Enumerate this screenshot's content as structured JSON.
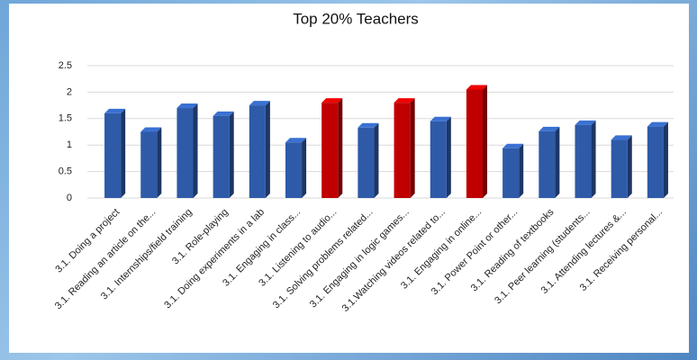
{
  "chart_data": {
    "type": "bar3d",
    "title": "Top 20% Teachers",
    "categories": [
      "3.1.  Doing a project",
      "3.1.  Reading an article on the...",
      "3.1.  Internships/field training",
      "3.1.  Role-playing",
      "3.1.   Doing experiments in a lab",
      "3.1.   Engaging in class...",
      "3.1.  Listening to audio...",
      "3.1.  Solving problems related...",
      "3.1.  Engaging in logic games...",
      "3.1.Watching videos related to...",
      "3.1. Engaging in online...",
      "3.1.  Power Point or other...",
      "3.1.  Reading of textbooks",
      "3.1.  Peer learning (students...",
      "3.1. Attending lectures &...",
      "3.1. Receiving personal..."
    ],
    "values": [
      1.6,
      1.25,
      1.7,
      1.55,
      1.75,
      1.05,
      1.8,
      1.33,
      1.8,
      1.45,
      2.05,
      0.94,
      1.26,
      1.38,
      1.1,
      1.35
    ],
    "colors": [
      "#2e5aa8",
      "#2e5aa8",
      "#2e5aa8",
      "#2e5aa8",
      "#2e5aa8",
      "#2e5aa8",
      "#c00000",
      "#2e5aa8",
      "#c00000",
      "#2e5aa8",
      "#c00000",
      "#2e5aa8",
      "#2e5aa8",
      "#2e5aa8",
      "#2e5aa8",
      "#2e5aa8"
    ],
    "ylim": [
      0,
      2.5
    ],
    "yticks": [
      0,
      0.5,
      1,
      1.5,
      2,
      2.5
    ],
    "grid": true
  }
}
